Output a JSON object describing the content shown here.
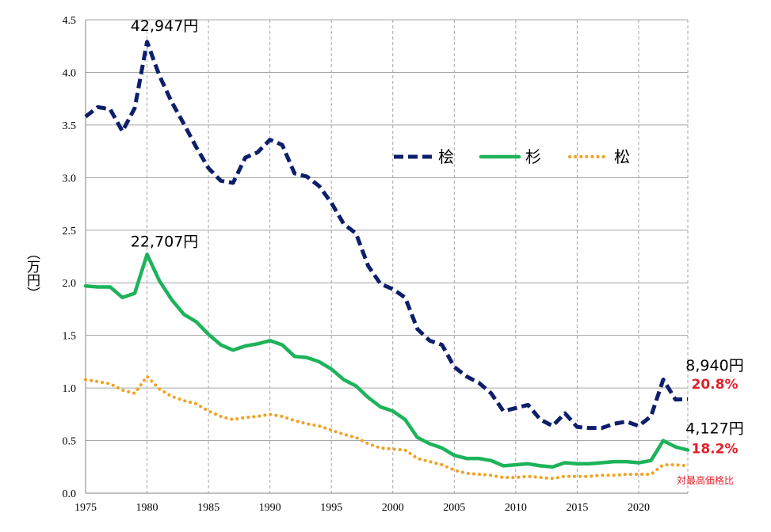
{
  "chart_data": {
    "type": "line",
    "title": "",
    "xlabel": "",
    "ylabel": "（万円）",
    "xlim": [
      1975,
      2024
    ],
    "ylim": [
      0,
      4.5
    ],
    "xticks": [
      "1975",
      "1980",
      "1985",
      "1990",
      "1995",
      "2000",
      "2005",
      "2010",
      "2015",
      "2020"
    ],
    "yticks": [
      "0.0",
      "0.5",
      "1.0",
      "1.5",
      "2.0",
      "2.5",
      "3.0",
      "3.5",
      "4.0",
      "4.5"
    ],
    "grid": {
      "vertical": true,
      "vertical_style": "dashed",
      "horizontal": true,
      "horizontal_style": "solid"
    },
    "legend_position": "upper-right",
    "series": [
      {
        "name": "桧",
        "color": "#0d1f6b",
        "style": "dashed",
        "x": [
          1975,
          1976,
          1977,
          1978,
          1979,
          1980,
          1981,
          1982,
          1983,
          1984,
          1985,
          1986,
          1987,
          1988,
          1989,
          1990,
          1991,
          1992,
          1993,
          1994,
          1995,
          1996,
          1997,
          1998,
          1999,
          2000,
          2001,
          2002,
          2003,
          2004,
          2005,
          2006,
          2007,
          2008,
          2009,
          2010,
          2011,
          2012,
          2013,
          2014,
          2015,
          2016,
          2017,
          2018,
          2019,
          2020,
          2021,
          2022,
          2023,
          2024
        ],
        "values": [
          3.58,
          3.67,
          3.65,
          3.44,
          3.66,
          4.29,
          3.97,
          3.72,
          3.51,
          3.29,
          3.09,
          2.97,
          2.95,
          3.19,
          3.24,
          3.36,
          3.31,
          3.04,
          3.01,
          2.92,
          2.76,
          2.56,
          2.47,
          2.16,
          1.99,
          1.94,
          1.86,
          1.56,
          1.45,
          1.41,
          1.2,
          1.11,
          1.05,
          0.95,
          0.78,
          0.81,
          0.84,
          0.7,
          0.64,
          0.76,
          0.63,
          0.62,
          0.62,
          0.66,
          0.68,
          0.64,
          0.73,
          1.08,
          0.89,
          0.894
        ]
      },
      {
        "name": "杉",
        "color": "#1db35a",
        "style": "solid",
        "x": [
          1975,
          1976,
          1977,
          1978,
          1979,
          1980,
          1981,
          1982,
          1983,
          1984,
          1985,
          1986,
          1987,
          1988,
          1989,
          1990,
          1991,
          1992,
          1993,
          1994,
          1995,
          1996,
          1997,
          1998,
          1999,
          2000,
          2001,
          2002,
          2003,
          2004,
          2005,
          2006,
          2007,
          2008,
          2009,
          2010,
          2011,
          2012,
          2013,
          2014,
          2015,
          2016,
          2017,
          2018,
          2019,
          2020,
          2021,
          2022,
          2023,
          2024
        ],
        "values": [
          1.97,
          1.96,
          1.96,
          1.86,
          1.9,
          2.27,
          2.02,
          1.84,
          1.7,
          1.63,
          1.51,
          1.41,
          1.36,
          1.4,
          1.42,
          1.45,
          1.41,
          1.3,
          1.29,
          1.25,
          1.18,
          1.08,
          1.02,
          0.91,
          0.82,
          0.78,
          0.7,
          0.53,
          0.47,
          0.43,
          0.36,
          0.33,
          0.33,
          0.31,
          0.26,
          0.27,
          0.28,
          0.26,
          0.25,
          0.29,
          0.28,
          0.28,
          0.29,
          0.3,
          0.3,
          0.29,
          0.31,
          0.5,
          0.44,
          0.41
        ]
      },
      {
        "name": "松",
        "color": "#f4a020",
        "style": "dotted",
        "x": [
          1975,
          1976,
          1977,
          1978,
          1979,
          1980,
          1981,
          1982,
          1983,
          1984,
          1985,
          1986,
          1987,
          1988,
          1989,
          1990,
          1991,
          1992,
          1993,
          1994,
          1995,
          1996,
          1997,
          1998,
          1999,
          2000,
          2001,
          2002,
          2003,
          2004,
          2005,
          2006,
          2007,
          2008,
          2009,
          2010,
          2011,
          2012,
          2013,
          2014,
          2015,
          2016,
          2017,
          2018,
          2019,
          2020,
          2021,
          2022,
          2023,
          2024
        ],
        "values": [
          1.08,
          1.06,
          1.04,
          0.98,
          0.95,
          1.11,
          0.99,
          0.92,
          0.88,
          0.85,
          0.78,
          0.73,
          0.7,
          0.72,
          0.73,
          0.75,
          0.73,
          0.69,
          0.66,
          0.64,
          0.6,
          0.56,
          0.53,
          0.47,
          0.43,
          0.42,
          0.41,
          0.33,
          0.3,
          0.27,
          0.22,
          0.19,
          0.18,
          0.17,
          0.15,
          0.15,
          0.16,
          0.15,
          0.14,
          0.16,
          0.16,
          0.16,
          0.17,
          0.17,
          0.18,
          0.18,
          0.18,
          0.27,
          0.27,
          0.26
        ]
      }
    ],
    "annotations": [
      {
        "id": "hinoki_peak",
        "text": "42,947円",
        "x": 1980,
        "y": 4.29,
        "style": "value"
      },
      {
        "id": "sugi_peak",
        "text": "22,707円",
        "x": 1980,
        "y": 2.27,
        "style": "value"
      },
      {
        "id": "hinoki_latest",
        "text": "8,940円",
        "x": 2024,
        "y": 0.894,
        "style": "value"
      },
      {
        "id": "hinoki_ratio",
        "text": "20.8%",
        "x": 2024,
        "y": 0.894,
        "style": "pct"
      },
      {
        "id": "sugi_latest",
        "text": "4,127円",
        "x": 2024,
        "y": 0.41,
        "style": "value"
      },
      {
        "id": "sugi_ratio",
        "text": "18.2%",
        "x": 2024,
        "y": 0.41,
        "style": "pct"
      },
      {
        "id": "ratio_note",
        "text": "対最高価格比",
        "x": 2024,
        "y": 0.0,
        "style": "note"
      }
    ]
  }
}
